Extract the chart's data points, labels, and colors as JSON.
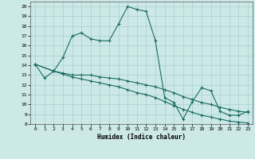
{
  "title": "",
  "xlabel": "Humidex (Indice chaleur)",
  "xlim": [
    -0.5,
    23.5
  ],
  "ylim": [
    8,
    20.5
  ],
  "xticks": [
    0,
    1,
    2,
    3,
    4,
    5,
    6,
    7,
    8,
    9,
    10,
    11,
    12,
    13,
    14,
    15,
    16,
    17,
    18,
    19,
    20,
    21,
    22,
    23
  ],
  "yticks": [
    8,
    9,
    10,
    11,
    12,
    13,
    14,
    15,
    16,
    17,
    18,
    19,
    20
  ],
  "bg_color": "#cce9e7",
  "grid_color": "#a8cece",
  "line_color": "#1a6b62",
  "lines": [
    {
      "x": [
        0,
        1,
        2,
        3,
        4,
        5,
        6,
        7,
        8,
        9,
        10,
        11,
        12,
        13,
        14,
        15,
        16,
        17,
        18,
        19,
        20,
        21,
        22,
        23
      ],
      "y": [
        14.1,
        12.7,
        13.4,
        14.8,
        17.0,
        17.3,
        16.7,
        16.5,
        16.5,
        18.2,
        20.0,
        19.7,
        19.5,
        16.5,
        10.7,
        10.2,
        8.5,
        10.3,
        11.7,
        11.4,
        9.3,
        8.9,
        8.9,
        9.3
      ]
    },
    {
      "x": [
        0,
        2,
        3,
        4,
        5,
        6,
        7,
        8,
        9,
        10,
        11,
        12,
        13,
        14,
        15,
        16,
        17,
        18,
        19,
        20,
        21,
        22,
        23
      ],
      "y": [
        14.1,
        13.4,
        13.2,
        13.0,
        13.0,
        13.0,
        12.8,
        12.7,
        12.6,
        12.4,
        12.2,
        12.0,
        11.8,
        11.5,
        11.2,
        10.8,
        10.5,
        10.2,
        10.0,
        9.7,
        9.5,
        9.3,
        9.2
      ]
    },
    {
      "x": [
        0,
        2,
        3,
        4,
        5,
        6,
        7,
        8,
        9,
        10,
        11,
        12,
        13,
        14,
        15,
        16,
        17,
        18,
        19,
        20,
        21,
        22,
        23
      ],
      "y": [
        14.1,
        13.4,
        13.1,
        12.8,
        12.6,
        12.4,
        12.2,
        12.0,
        11.8,
        11.5,
        11.2,
        11.0,
        10.7,
        10.3,
        9.9,
        9.5,
        9.2,
        8.9,
        8.7,
        8.5,
        8.3,
        8.2,
        8.1
      ]
    }
  ]
}
